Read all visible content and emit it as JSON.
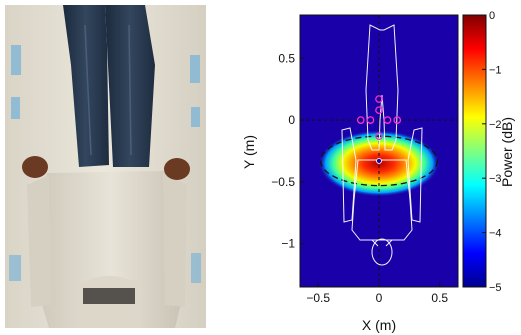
{
  "chart_data": {
    "type": "heatmap",
    "xlabel": "X (m)",
    "ylabel": "Y (m)",
    "colorbar_label": "Power (dB)",
    "xlim": [
      -0.65,
      0.65
    ],
    "ylim": [
      -1.35,
      0.85
    ],
    "x_ticks": [
      -0.5,
      0,
      0.5
    ],
    "x_tick_labels": [
      "−0.5",
      "0",
      "0.5"
    ],
    "y_ticks": [
      0.5,
      0,
      -0.5,
      -1
    ],
    "y_tick_labels": [
      "0.5",
      "0",
      "−0.5",
      "−1"
    ],
    "colorbar_range": [
      -5,
      0
    ],
    "colorbar_ticks": [
      0,
      -1,
      -2,
      -3,
      -4,
      -5
    ],
    "colorbar_tick_labels": [
      "0",
      "−1",
      "−2",
      "−3",
      "−4",
      "−5"
    ],
    "colormap": "jet",
    "hotspot": {
      "center": [
        0.0,
        -0.35
      ],
      "peak_db": 0,
      "radius_x": 0.5,
      "radius_y": 0.27
    },
    "dashed_ellipse": {
      "center": [
        0.0,
        -0.33
      ],
      "rx": 0.48,
      "ry": 0.2
    },
    "estimated_point": [
      0.0,
      -0.33
    ],
    "crosshair": {
      "x": 0.0,
      "y": 0.0
    },
    "magenta_markers": [
      {
        "x": 0.0,
        "y": 0.17
      },
      {
        "x": 0.0,
        "y": 0.08
      },
      {
        "x": -0.15,
        "y": 0.0
      },
      {
        "x": -0.07,
        "y": 0.0
      },
      {
        "x": 0.07,
        "y": 0.0
      },
      {
        "x": 0.15,
        "y": 0.0
      },
      {
        "x": 0.0,
        "y": -0.13
      }
    ],
    "grid": false,
    "background_color": "#1a00a8"
  }
}
